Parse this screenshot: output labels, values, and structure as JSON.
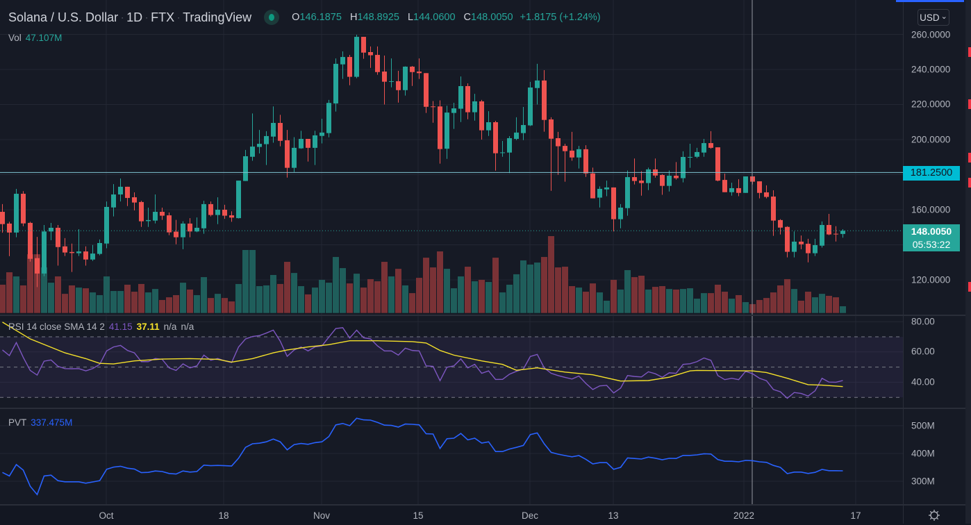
{
  "header": {
    "symbol": "Solana / U.S. Dollar",
    "interval": "1D",
    "exchange": "FTX",
    "source": "TradingView",
    "separator": "·",
    "open_label": "O",
    "open": "146.1875",
    "high_label": "H",
    "high": "148.8925",
    "low_label": "L",
    "low": "144.0600",
    "close_label": "C",
    "close": "148.0050",
    "change": "+1.8175 (+1.24%)"
  },
  "volume_legend": {
    "label": "Vol",
    "value": "47.107M"
  },
  "currency": {
    "label": "USD",
    "chevron": "⌄"
  },
  "price_axis": [
    "260.0000",
    "240.0000",
    "220.0000",
    "200.0000",
    "160.0000",
    "120.0000"
  ],
  "crosshair_price": "181.2500",
  "last_price": {
    "price": "148.0050",
    "countdown": "05:53:22"
  },
  "rsi_legend": {
    "label": "RSI 14 close SMA 14 2",
    "rsi": "41.15",
    "sma": "37.11",
    "na1": "n/a",
    "na2": "n/a"
  },
  "rsi_axis": [
    "80.00",
    "60.00",
    "40.00"
  ],
  "pvt_legend": {
    "label": "PVT",
    "value": "337.475M"
  },
  "pvt_axis": [
    "500M",
    "400M",
    "300M"
  ],
  "time_axis": {
    "labels": [
      "Oct",
      "18",
      "Nov",
      "15",
      "Dec",
      "13",
      "2022",
      "17"
    ]
  },
  "colors": {
    "up": "#26a69a",
    "down": "#ef5350",
    "vol_up": "#1f5e5b",
    "vol_down": "#7a3236",
    "rsi": "#7e57c2",
    "rsi_sma": "#f5e12a",
    "pvt": "#2962ff",
    "crosshair_label": "#00bcd4"
  },
  "chart_data": {
    "type": "candlestick",
    "title": "Solana / U.S. Dollar · 1D · FTX",
    "ylim": [
      105,
      265
    ],
    "crosshair_level": 181.25,
    "last_close": 148.005,
    "candles_ohlc": [
      [
        158.8,
        163.2,
        146.9,
        151.8
      ],
      [
        152.1,
        153.1,
        133.5,
        147.0
      ],
      [
        147.0,
        171.9,
        144.3,
        169.1
      ],
      [
        169.1,
        170.6,
        150.6,
        152.2
      ],
      [
        152.5,
        153.1,
        130.4,
        132.0
      ],
      [
        132.4,
        144.5,
        115.9,
        123.6
      ],
      [
        123.6,
        151.3,
        122.1,
        147.6
      ],
      [
        147.6,
        152.5,
        142.6,
        149.7
      ],
      [
        149.7,
        151.3,
        128.1,
        138.7
      ],
      [
        139.1,
        143.8,
        133.6,
        135.6
      ],
      [
        135.9,
        140.7,
        124.5,
        135.3
      ],
      [
        135.2,
        148.9,
        133.6,
        136.2
      ],
      [
        136.2,
        139.1,
        128.1,
        131.6
      ],
      [
        131.6,
        139.9,
        130.8,
        135.0
      ],
      [
        134.8,
        143.0,
        134.0,
        141.0
      ],
      [
        140.7,
        164.7,
        138.0,
        161.6
      ],
      [
        161.3,
        174.6,
        156.2,
        168.7
      ],
      [
        168.7,
        177.8,
        164.7,
        173.1
      ],
      [
        173.1,
        173.1,
        162.1,
        166.7
      ],
      [
        167.1,
        169.9,
        159.6,
        164.1
      ],
      [
        164.4,
        165.1,
        150.2,
        153.4
      ],
      [
        153.5,
        161.2,
        150.2,
        154.1
      ],
      [
        153.8,
        168.7,
        152.2,
        158.8
      ],
      [
        158.8,
        161.2,
        154.2,
        156.6
      ],
      [
        156.8,
        158.4,
        145.5,
        147.1
      ],
      [
        147.5,
        154.2,
        140.3,
        144.3
      ],
      [
        144.3,
        153.4,
        137.5,
        152.1
      ],
      [
        152.1,
        155.2,
        144.3,
        147.6
      ],
      [
        147.6,
        155.6,
        147.2,
        149.7
      ],
      [
        149.4,
        165.1,
        146.3,
        163.2
      ],
      [
        163.2,
        164.7,
        156.2,
        157.0
      ],
      [
        157.0,
        167.1,
        151.8,
        160.0
      ],
      [
        160.0,
        162.8,
        154.8,
        156.6
      ],
      [
        156.8,
        159.1,
        153.1,
        155.5
      ],
      [
        155.2,
        176.6,
        155.0,
        176.6
      ],
      [
        176.4,
        194.1,
        176.4,
        190.5
      ],
      [
        190.2,
        214.9,
        187.9,
        196.0
      ],
      [
        195.8,
        205.5,
        192.1,
        197.6
      ],
      [
        197.4,
        204.8,
        185.5,
        202.0
      ],
      [
        201.7,
        218.9,
        198.2,
        209.5
      ],
      [
        209.5,
        214.1,
        196.2,
        199.3
      ],
      [
        199.6,
        205.5,
        178.3,
        183.9
      ],
      [
        183.9,
        201.4,
        181.5,
        195.3
      ],
      [
        195.0,
        205.0,
        194.7,
        200.4
      ],
      [
        200.4,
        200.4,
        187.5,
        195.3
      ],
      [
        195.3,
        205.0,
        185.5,
        202.4
      ],
      [
        202.1,
        211.9,
        197.8,
        204.0
      ],
      [
        203.7,
        222.6,
        201.3,
        220.9
      ],
      [
        220.6,
        246.3,
        216.0,
        243.2
      ],
      [
        242.9,
        250.3,
        234.6,
        247.1
      ],
      [
        247.1,
        248.3,
        231.0,
        235.8
      ],
      [
        235.8,
        259.8,
        235.0,
        258.6
      ],
      [
        258.6,
        258.6,
        246.1,
        249.6
      ],
      [
        249.9,
        253.1,
        240.9,
        248.1
      ],
      [
        248.3,
        253.1,
        237.0,
        238.5
      ],
      [
        238.8,
        247.9,
        220.0,
        233.0
      ],
      [
        233.0,
        246.3,
        229.8,
        233.3
      ],
      [
        233.3,
        239.2,
        221.1,
        228.2
      ],
      [
        228.2,
        241.8,
        225.1,
        241.6
      ],
      [
        241.6,
        242.0,
        230.6,
        238.5
      ],
      [
        238.8,
        246.3,
        234.6,
        237.9
      ],
      [
        237.9,
        237.9,
        215.2,
        218.7
      ],
      [
        218.9,
        222.0,
        209.6,
        218.7
      ],
      [
        218.9,
        222.4,
        186.3,
        194.6
      ],
      [
        194.8,
        219.3,
        189.0,
        215.4
      ],
      [
        215.2,
        221.0,
        206.1,
        217.8
      ],
      [
        217.6,
        236.0,
        210.0,
        230.5
      ],
      [
        230.5,
        232.1,
        211.6,
        215.6
      ],
      [
        215.6,
        226.1,
        210.8,
        221.8
      ],
      [
        221.8,
        222.6,
        200.0,
        205.3
      ],
      [
        205.3,
        216.2,
        202.1,
        209.9
      ],
      [
        209.9,
        210.7,
        182.3,
        192.2
      ],
      [
        192.3,
        199.2,
        190.2,
        192.7
      ],
      [
        192.6,
        202.0,
        180.9,
        200.8
      ],
      [
        200.4,
        212.7,
        199.7,
        204.0
      ],
      [
        203.7,
        218.6,
        199.7,
        208.3
      ],
      [
        208.1,
        232.9,
        207.7,
        229.7
      ],
      [
        229.4,
        243.2,
        220.0,
        233.7
      ],
      [
        233.7,
        239.6,
        204.5,
        211.2
      ],
      [
        211.5,
        212.7,
        170.8,
        200.5
      ],
      [
        200.8,
        204.4,
        179.9,
        196.2
      ],
      [
        196.4,
        197.6,
        176.0,
        193.4
      ],
      [
        193.7,
        204.4,
        187.9,
        189.8
      ],
      [
        189.8,
        196.4,
        183.5,
        194.5
      ],
      [
        194.5,
        196.8,
        178.7,
        180.7
      ],
      [
        180.7,
        184.0,
        166.5,
        166.5
      ],
      [
        166.9,
        173.3,
        161.3,
        171.9
      ],
      [
        171.6,
        176.6,
        167.7,
        172.7
      ],
      [
        172.7,
        172.7,
        147.6,
        154.6
      ],
      [
        154.6,
        163.2,
        149.4,
        161.2
      ],
      [
        160.9,
        182.4,
        156.6,
        178.6
      ],
      [
        178.6,
        189.2,
        174.4,
        176.4
      ],
      [
        176.6,
        182.0,
        168.0,
        175.2
      ],
      [
        175.2,
        184.0,
        171.2,
        183.0
      ],
      [
        183.0,
        189.2,
        178.3,
        179.5
      ],
      [
        179.8,
        180.3,
        168.5,
        173.6
      ],
      [
        173.6,
        182.4,
        170.4,
        179.4
      ],
      [
        179.4,
        187.2,
        177.2,
        178.0
      ],
      [
        178.0,
        193.3,
        175.6,
        190.1
      ],
      [
        189.8,
        197.6,
        183.9,
        190.1
      ],
      [
        190.2,
        195.3,
        189.4,
        192.9
      ],
      [
        192.6,
        200.4,
        190.2,
        198.0
      ],
      [
        198.0,
        204.8,
        194.8,
        195.3
      ],
      [
        195.6,
        195.6,
        176.2,
        176.6
      ],
      [
        177.0,
        180.6,
        170.0,
        170.0
      ],
      [
        170.0,
        175.4,
        168.0,
        172.3
      ],
      [
        172.3,
        177.4,
        167.7,
        169.6
      ],
      [
        169.6,
        179.0,
        169.6,
        179.0
      ],
      [
        179.0,
        179.0,
        174.4,
        176.0
      ],
      [
        176.2,
        176.2,
        166.5,
        169.6
      ],
      [
        169.9,
        173.9,
        166.5,
        167.3
      ],
      [
        167.5,
        171.1,
        145.1,
        153.8
      ],
      [
        154.1,
        154.6,
        145.9,
        149.8
      ],
      [
        150.2,
        150.6,
        132.8,
        136.0
      ],
      [
        136.0,
        147.6,
        132.8,
        141.8
      ],
      [
        141.8,
        145.3,
        137.5,
        140.3
      ],
      [
        140.6,
        143.4,
        130.0,
        135.2
      ],
      [
        135.2,
        143.4,
        133.6,
        139.8
      ],
      [
        139.5,
        153.3,
        138.4,
        151.3
      ],
      [
        151.3,
        157.6,
        145.5,
        145.9
      ],
      [
        146.3,
        150.6,
        141.9,
        146.0
      ],
      [
        146.1875,
        148.8925,
        144.06,
        148.005
      ]
    ],
    "volume_millions": [
      198,
      285,
      256,
      193,
      411,
      411,
      319,
      212,
      256,
      134,
      193,
      178,
      173,
      144,
      125,
      256,
      154,
      154,
      198,
      149,
      203,
      144,
      168,
      91,
      110,
      125,
      212,
      164,
      125,
      251,
      105,
      134,
      105,
      81,
      203,
      441,
      441,
      188,
      193,
      266,
      203,
      358,
      280,
      188,
      130,
      178,
      232,
      212,
      392,
      314,
      207,
      275,
      178,
      237,
      222,
      358,
      256,
      309,
      193,
      139,
      246,
      387,
      319,
      431,
      309,
      173,
      256,
      324,
      222,
      232,
      217,
      387,
      144,
      198,
      271,
      368,
      339,
      353,
      392,
      538,
      319,
      324,
      188,
      178,
      149,
      207,
      144,
      86,
      232,
      164,
      300,
      251,
      261,
      164,
      183,
      188,
      168,
      164,
      168,
      173,
      100,
      139,
      139,
      198,
      149,
      100,
      125,
      76,
      62,
      91,
      105,
      144,
      193,
      237,
      168,
      86,
      149,
      110,
      134,
      120,
      110,
      47.107
    ],
    "rsi": {
      "ylim": [
        20,
        85
      ],
      "overbought": 70,
      "middle": 50,
      "oversold": 30,
      "values": [
        61.3,
        57.6,
        66.2,
        56.4,
        47.8,
        44.7,
        53.9,
        54.7,
        50.5,
        49.0,
        48.9,
        49.0,
        47.5,
        49.0,
        51.8,
        60.7,
        63.3,
        64.3,
        61.0,
        59.4,
        53.6,
        53.6,
        55.7,
        55.1,
        49.5,
        47.8,
        52.1,
        49.5,
        50.8,
        57.9,
        54.5,
        55.7,
        54.1,
        53.0,
        63.3,
        68.6,
        70.2,
        70.8,
        72.5,
        74.4,
        67.1,
        57.1,
        61.3,
        63.3,
        60.7,
        63.3,
        64.0,
        69.8,
        75.5,
        76.0,
        69.2,
        74.4,
        69.4,
        68.6,
        64.0,
        60.7,
        60.7,
        57.9,
        62.5,
        61.0,
        60.7,
        50.8,
        50.5,
        41.0,
        49.9,
        50.8,
        55.4,
        49.5,
        51.8,
        45.9,
        47.5,
        41.8,
        41.9,
        45.3,
        47.2,
        48.7,
        57.0,
        58.4,
        49.5,
        45.9,
        44.4,
        43.2,
        42.1,
        44.1,
        39.2,
        35.2,
        37.6,
        37.9,
        32.9,
        36.1,
        44.4,
        43.8,
        43.5,
        46.9,
        45.6,
        43.3,
        46.2,
        45.9,
        51.8,
        52.2,
        53.6,
        56.0,
        54.5,
        44.4,
        41.7,
        42.6,
        41.7,
        47.2,
        45.6,
        42.6,
        41.0,
        35.2,
        33.7,
        29.4,
        33.2,
        32.6,
        30.9,
        34.3,
        42.6,
        40.1,
        40.0,
        41.15
      ],
      "sma_points": [
        [
          1,
          79.7
        ],
        [
          5,
          68.6
        ],
        [
          10,
          59.4
        ],
        [
          13,
          55.6
        ],
        [
          15,
          52.5
        ],
        [
          17,
          52.1
        ],
        [
          20,
          54.1
        ],
        [
          24,
          55.3
        ],
        [
          28,
          55.6
        ],
        [
          32,
          55.1
        ],
        [
          34,
          53.3
        ],
        [
          37,
          55.6
        ],
        [
          40,
          59.4
        ],
        [
          42,
          61.3
        ],
        [
          45,
          63.3
        ],
        [
          48,
          64.8
        ],
        [
          51,
          67.4
        ],
        [
          55,
          67.4
        ],
        [
          60,
          66.8
        ],
        [
          62,
          65.9
        ],
        [
          64,
          61.0
        ],
        [
          66,
          57.9
        ],
        [
          70,
          54.1
        ],
        [
          73,
          51.8
        ],
        [
          75,
          47.9
        ],
        [
          78,
          49.5
        ],
        [
          82,
          46.7
        ],
        [
          86,
          44.9
        ],
        [
          90,
          40.8
        ],
        [
          94,
          41.1
        ],
        [
          97,
          43.3
        ],
        [
          100,
          47.5
        ],
        [
          101,
          47.8
        ],
        [
          105,
          47.6
        ],
        [
          109,
          47.5
        ],
        [
          111,
          46.4
        ],
        [
          114,
          42.6
        ],
        [
          117,
          38.4
        ],
        [
          119,
          38.1
        ],
        [
          122,
          37.11
        ]
      ]
    },
    "pvt_millions": {
      "ylim": [
        200,
        560
      ],
      "values": [
        331.7,
        319,
        360,
        340,
        282,
        252,
        319,
        322,
        302,
        298,
        298,
        298,
        293,
        297.5,
        302,
        343,
        351,
        354,
        347,
        344,
        331,
        332,
        337,
        335,
        328,
        326,
        337,
        333,
        335,
        358,
        356,
        357,
        356,
        355,
        383,
        422,
        435,
        437,
        442,
        452,
        442,
        413,
        432,
        436,
        433,
        439,
        442,
        461,
        503,
        508,
        500,
        527,
        521,
        520,
        512,
        502,
        501,
        495,
        506,
        505,
        503,
        471,
        470,
        418,
        453,
        455,
        472,
        449,
        455,
        437.5,
        442,
        407,
        407,
        416,
        422,
        429,
        468,
        474,
        435,
        404,
        397.5,
        392.5,
        388,
        392.5,
        379,
        362.5,
        367,
        367,
        343,
        350,
        384,
        382,
        380,
        387,
        383,
        377.5,
        382.5,
        382,
        393,
        393,
        395,
        399,
        398,
        378,
        372,
        372,
        370,
        375,
        374,
        370,
        368,
        357,
        350,
        327.5,
        333,
        333,
        328,
        332,
        342.5,
        338,
        338,
        337.475
      ]
    }
  }
}
